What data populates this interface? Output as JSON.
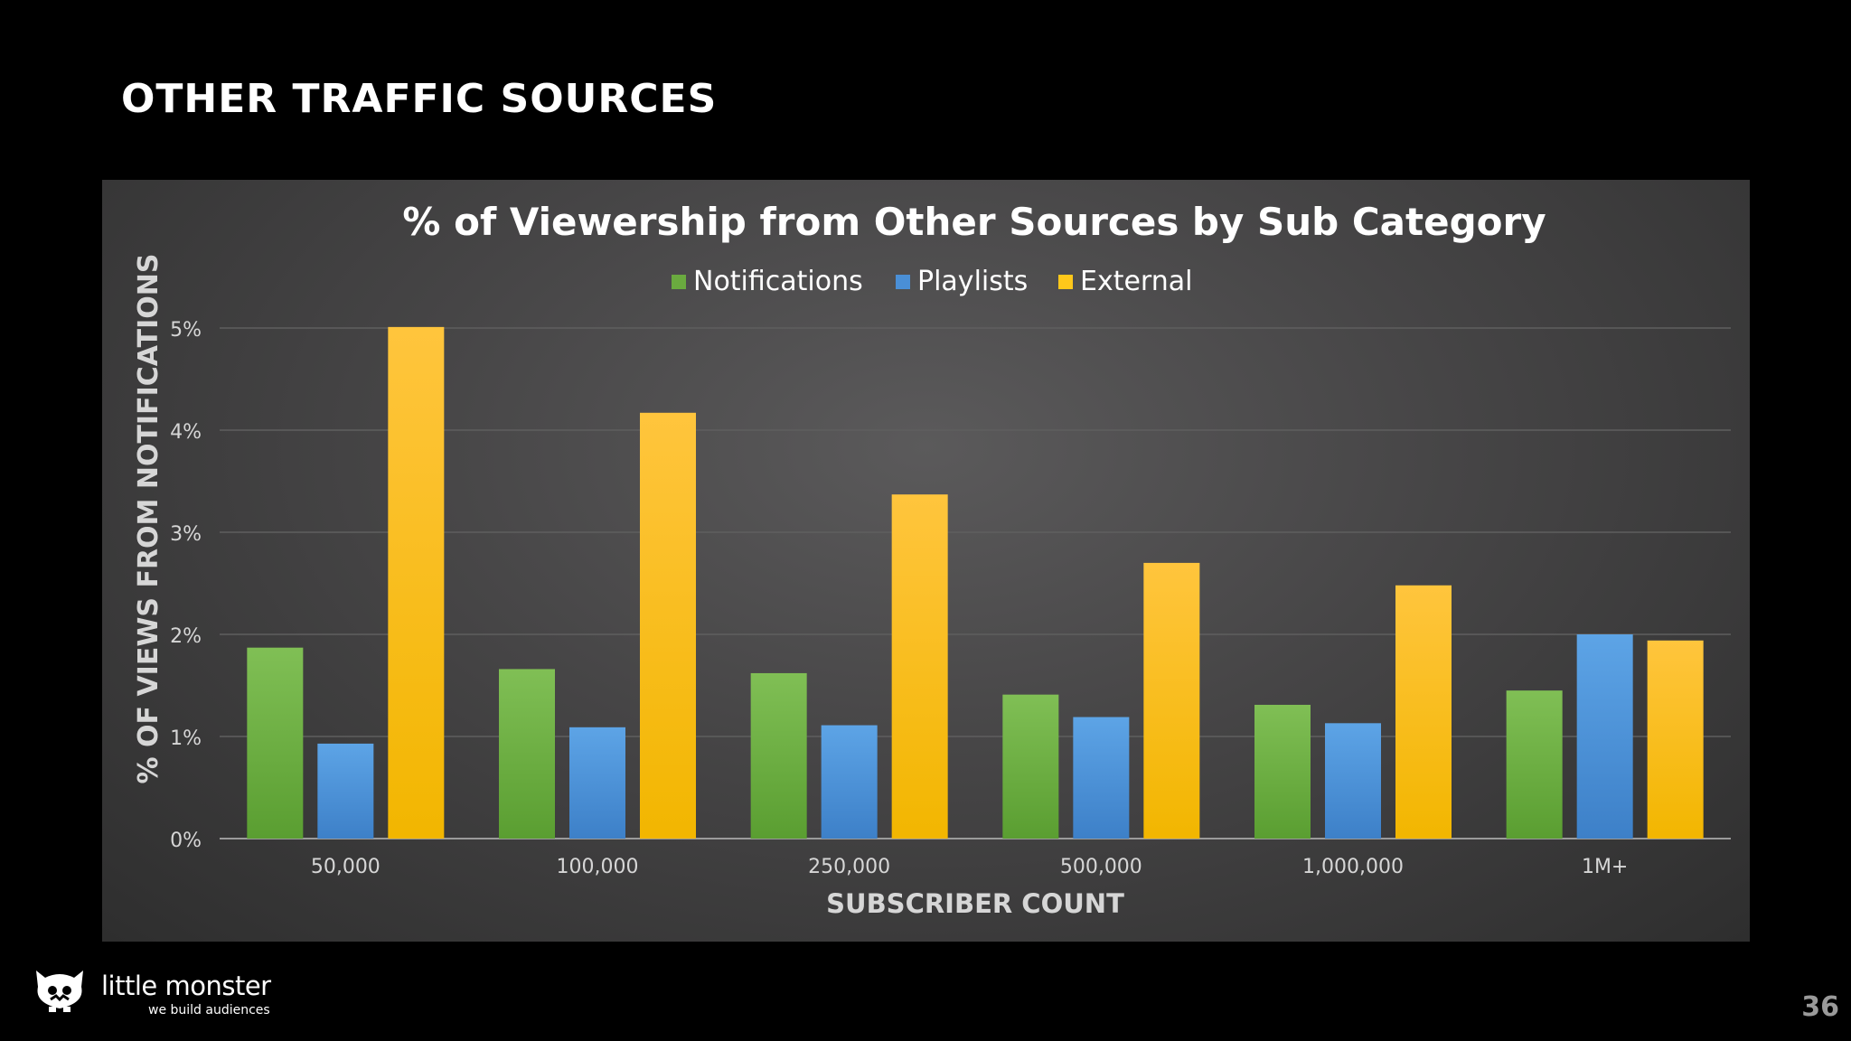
{
  "slide": {
    "title": "OTHER TRAFFIC SOURCES",
    "page_number": "36"
  },
  "brand": {
    "name": "little monster",
    "tagline": "we build audiences",
    "icon": "monster-logo-icon"
  },
  "colors": {
    "notifications": "#6aaa3f",
    "playlists": "#4a8fd6",
    "external": "#ffc81a",
    "background": "#000000",
    "panel": "#474647"
  },
  "chart_data": {
    "type": "bar",
    "title": "% of Viewership from Other Sources by Sub Category",
    "xlabel": "SUBSCRIBER COUNT",
    "ylabel": "% OF VIEWS FROM NOTIFICATIONS",
    "categories": [
      "50,000",
      "100,000",
      "250,000",
      "500,000",
      "1,000,000",
      "1M+"
    ],
    "series": [
      {
        "name": "Notifications",
        "values": [
          1.87,
          1.66,
          1.62,
          1.41,
          1.31,
          1.45
        ]
      },
      {
        "name": "Playlists",
        "values": [
          0.93,
          1.09,
          1.11,
          1.19,
          1.13,
          2.0
        ]
      },
      {
        "name": "External",
        "values": [
          5.01,
          4.17,
          3.37,
          2.7,
          2.48,
          1.94
        ]
      }
    ],
    "ylim": [
      0,
      5
    ],
    "yticks": [
      "0%",
      "1%",
      "2%",
      "3%",
      "4%",
      "5%"
    ],
    "legend_position": "top",
    "grid": true
  }
}
